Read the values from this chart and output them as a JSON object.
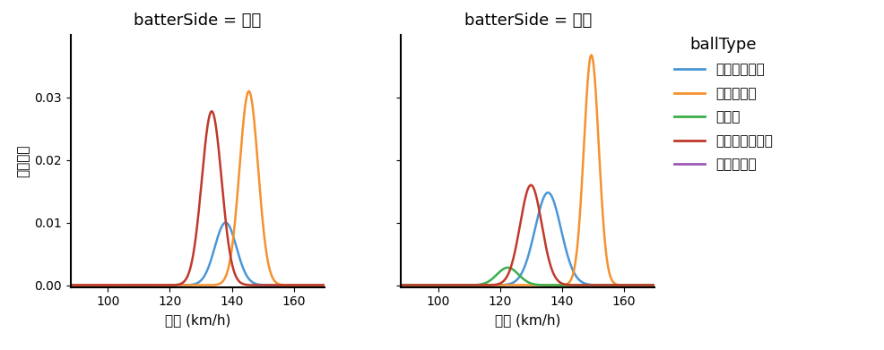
{
  "title_left": "batterSide = 左打",
  "title_right": "batterSide = 右打",
  "xlabel": "球速 (km/h)",
  "ylabel": "確率密度",
  "legend_title": "ballType",
  "legend_entries": [
    "カットボール",
    "ストレート",
    "カーブ",
    "チェンジアップ",
    "スライダー"
  ],
  "colors": {
    "カットボール": "#4c96d7",
    "ストレート": "#f5922f",
    "カーブ": "#3aaf4b",
    "チェンジアップ": "#c0392b",
    "スライダー": "#9b59b6"
  },
  "xlim": [
    88,
    170
  ],
  "ylim": [
    -0.0003,
    0.04
  ],
  "yticks": [
    0.0,
    0.01,
    0.02,
    0.03
  ],
  "xticks": [
    100,
    120,
    140,
    160
  ],
  "left": {
    "カットボール": {
      "mean": 138.0,
      "std": 3.5,
      "scale": 0.01
    },
    "ストレート": {
      "mean": 145.5,
      "std": 3.0,
      "scale": 0.031
    },
    "カーブ": null,
    "チェンジアップ": {
      "mean": 133.5,
      "std": 3.2,
      "scale": 0.0278
    },
    "スライダー": null
  },
  "right": {
    "カットボール": {
      "mean": 135.5,
      "std": 4.2,
      "scale": 0.0148
    },
    "ストレート": {
      "mean": 149.5,
      "std": 2.4,
      "scale": 0.0368
    },
    "カーブ": {
      "mean": 122.5,
      "std": 3.5,
      "scale": 0.0028
    },
    "チェンジアップ": {
      "mean": 130.0,
      "std": 3.5,
      "scale": 0.016
    },
    "スライダー": null
  },
  "background_color": "#ffffff",
  "figsize": [
    9.87,
    3.91
  ],
  "dpi": 100
}
